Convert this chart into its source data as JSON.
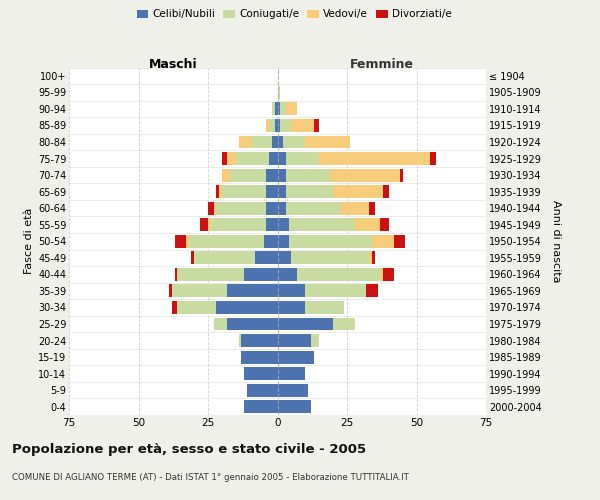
{
  "age_groups": [
    "0-4",
    "5-9",
    "10-14",
    "15-19",
    "20-24",
    "25-29",
    "30-34",
    "35-39",
    "40-44",
    "45-49",
    "50-54",
    "55-59",
    "60-64",
    "65-69",
    "70-74",
    "75-79",
    "80-84",
    "85-89",
    "90-94",
    "95-99",
    "100+"
  ],
  "birth_years": [
    "2000-2004",
    "1995-1999",
    "1990-1994",
    "1985-1989",
    "1980-1984",
    "1975-1979",
    "1970-1974",
    "1965-1969",
    "1960-1964",
    "1955-1959",
    "1950-1954",
    "1945-1949",
    "1940-1944",
    "1935-1939",
    "1930-1934",
    "1925-1929",
    "1920-1924",
    "1915-1919",
    "1910-1914",
    "1905-1909",
    "≤ 1904"
  ],
  "colors": {
    "celibi": "#4c72b0",
    "coniugati": "#c8dba0",
    "vedovi": "#f7cc7a",
    "divorziati": "#cc1111"
  },
  "male": {
    "celibi": [
      12,
      11,
      12,
      13,
      13,
      18,
      22,
      18,
      12,
      8,
      5,
      4,
      4,
      4,
      4,
      3,
      2,
      1,
      1,
      0,
      0
    ],
    "coniugati": [
      0,
      0,
      0,
      0,
      1,
      5,
      14,
      20,
      24,
      22,
      27,
      20,
      18,
      16,
      13,
      12,
      7,
      2,
      1,
      0,
      0
    ],
    "vedovi": [
      0,
      0,
      0,
      0,
      0,
      0,
      0,
      0,
      0,
      0,
      1,
      1,
      1,
      1,
      3,
      3,
      5,
      1,
      0,
      0,
      0
    ],
    "divorziati": [
      0,
      0,
      0,
      0,
      0,
      0,
      2,
      1,
      1,
      1,
      4,
      3,
      2,
      1,
      0,
      2,
      0,
      0,
      0,
      0,
      0
    ]
  },
  "female": {
    "celibi": [
      12,
      11,
      10,
      13,
      12,
      20,
      10,
      10,
      7,
      5,
      4,
      4,
      3,
      3,
      3,
      3,
      2,
      1,
      1,
      0,
      0
    ],
    "coniugati": [
      0,
      0,
      0,
      0,
      3,
      8,
      14,
      22,
      30,
      28,
      30,
      24,
      20,
      17,
      16,
      12,
      8,
      4,
      2,
      1,
      0
    ],
    "vedovi": [
      0,
      0,
      0,
      0,
      0,
      0,
      0,
      0,
      1,
      1,
      8,
      9,
      10,
      18,
      25,
      40,
      16,
      8,
      4,
      0,
      0
    ],
    "divorziati": [
      0,
      0,
      0,
      0,
      0,
      0,
      0,
      4,
      4,
      1,
      4,
      3,
      2,
      2,
      1,
      2,
      0,
      2,
      0,
      0,
      0
    ]
  },
  "title": "Popolazione per età, sesso e stato civile - 2005",
  "subtitle": "COMUNE DI AGLIANO TERME (AT) - Dati ISTAT 1° gennaio 2005 - Elaborazione TUTTITALIA.IT",
  "xlabel_left": "Maschi",
  "xlabel_right": "Femmine",
  "ylabel_left": "Fasce di età",
  "ylabel_right": "Anni di nascita",
  "legend_labels": [
    "Celibi/Nubili",
    "Coniugati/e",
    "Vedovi/e",
    "Divorziati/e"
  ],
  "xlim": 75,
  "bg_color": "#f0f0eb",
  "plot_bg": "#ffffff",
  "grid_color": "#cccccc"
}
